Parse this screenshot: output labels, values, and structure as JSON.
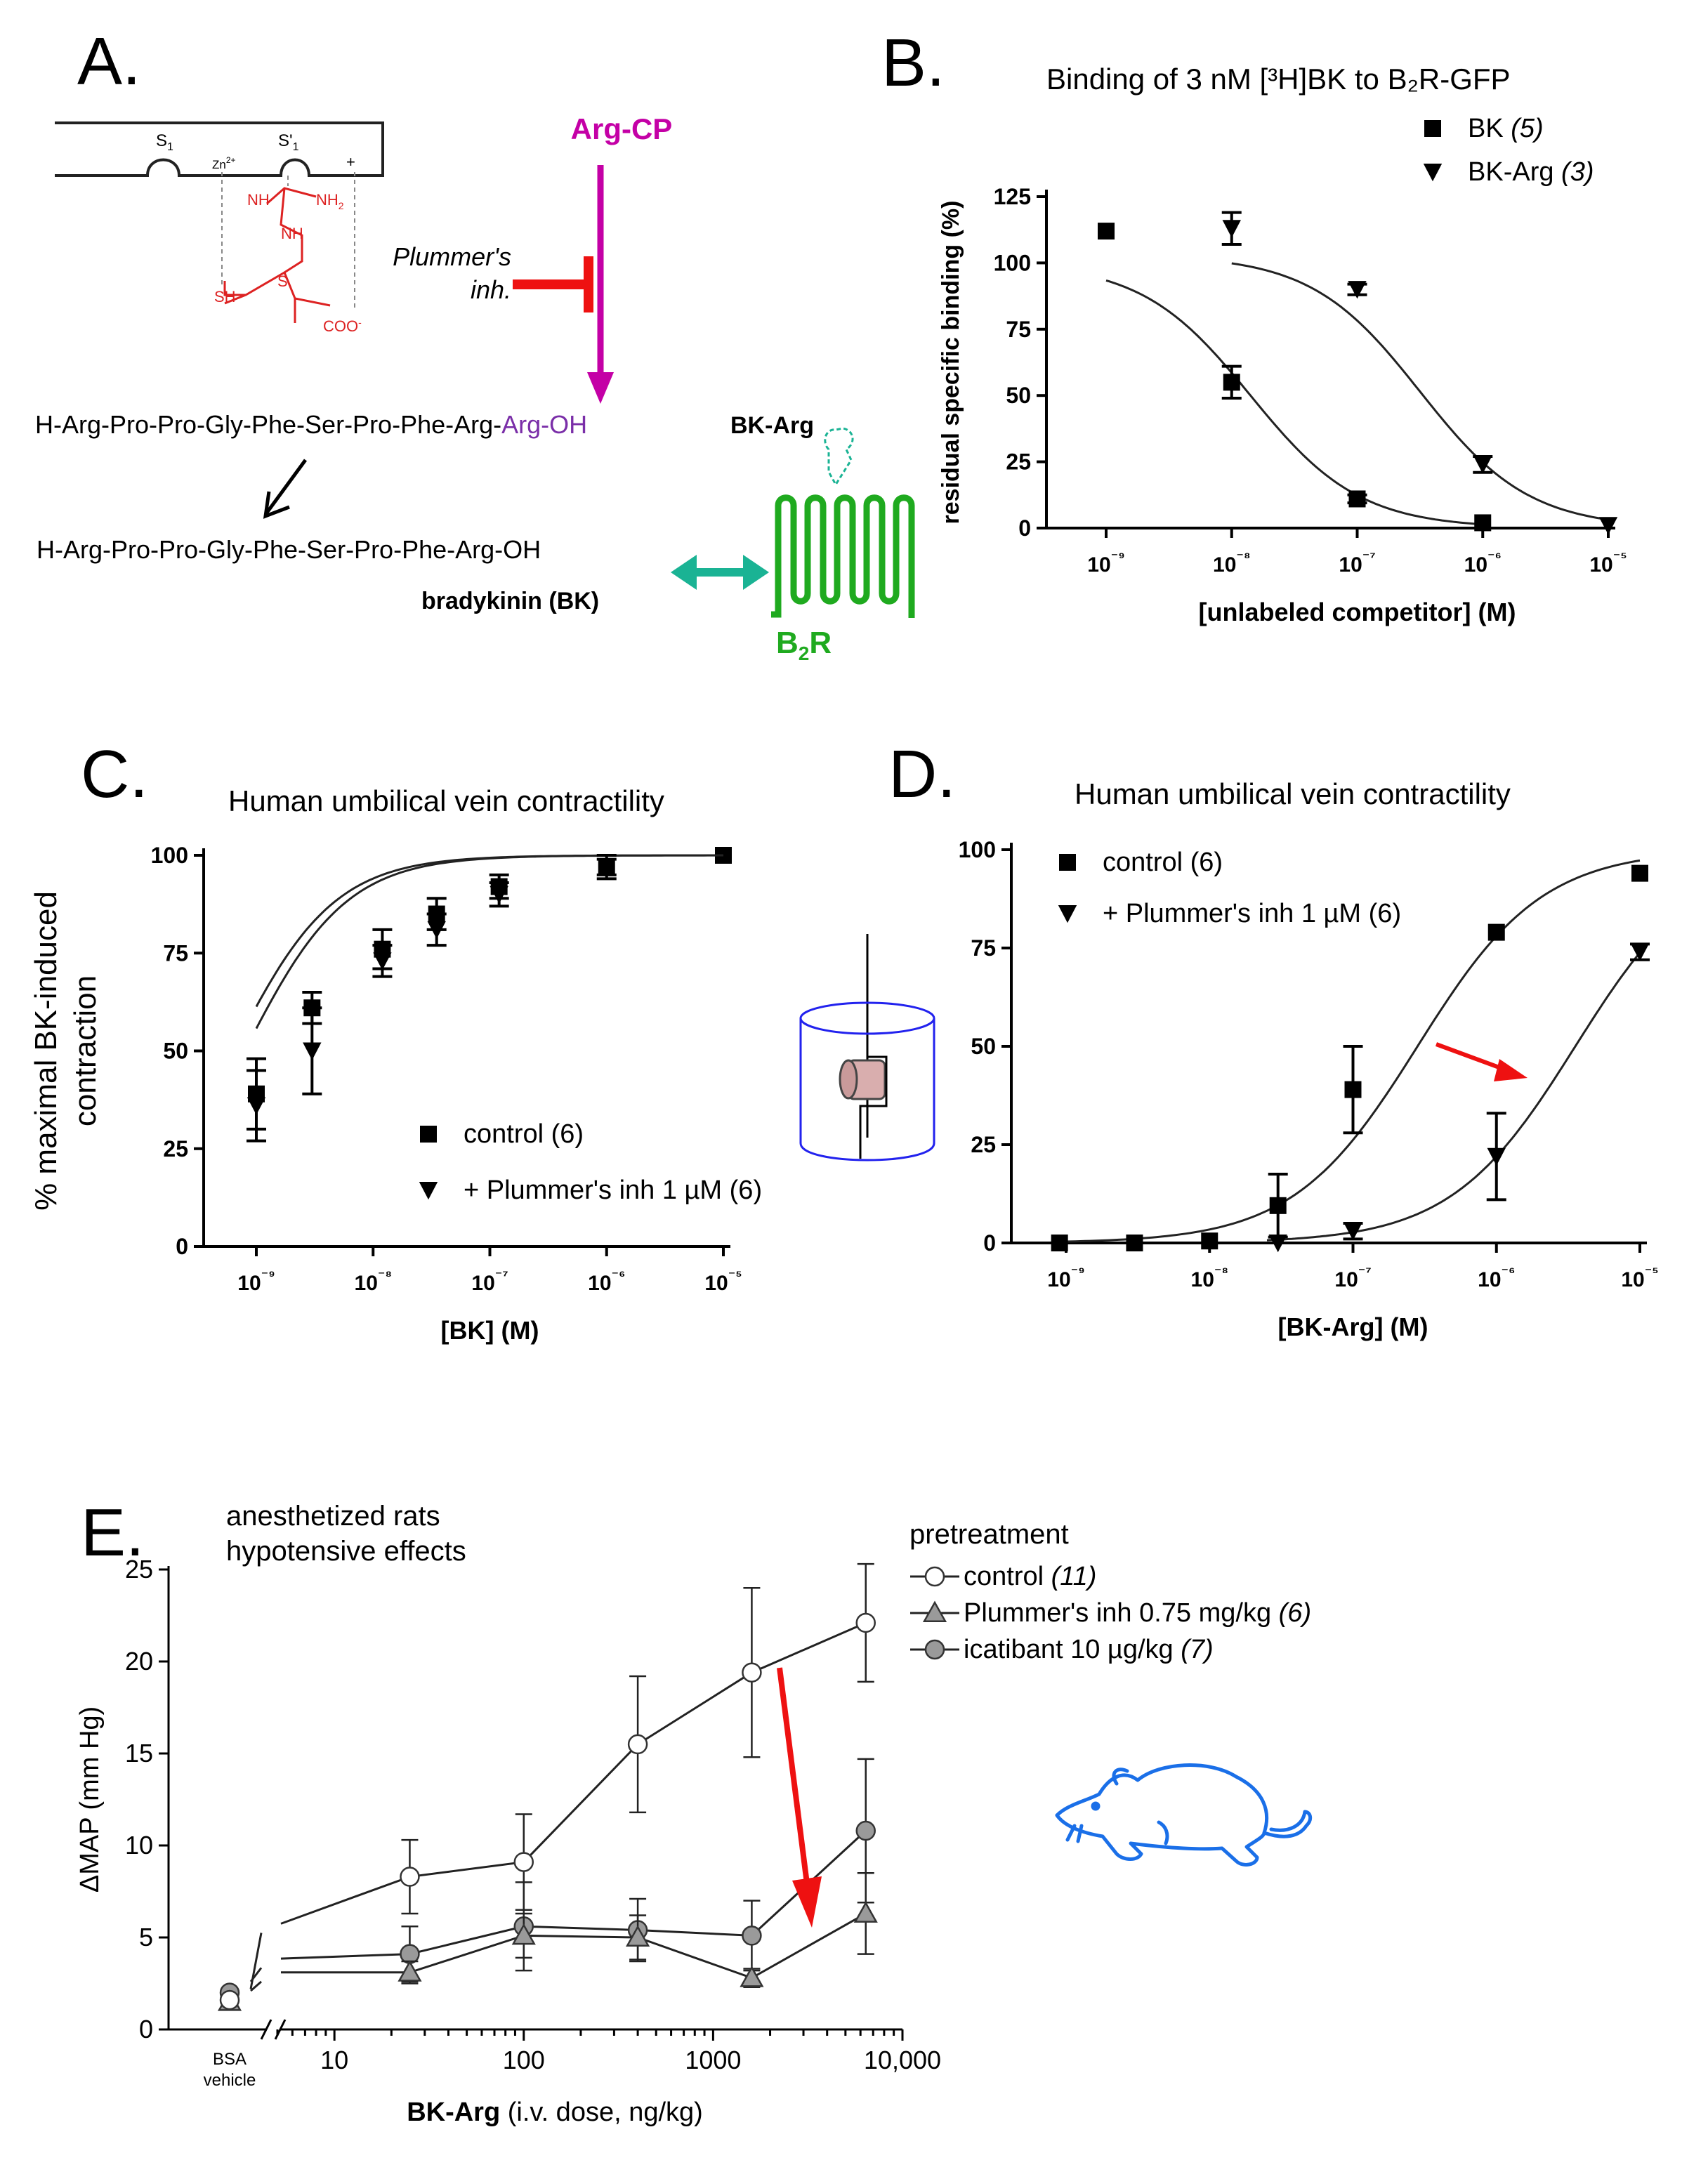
{
  "panel_a": {
    "letter": "A.",
    "s1": "S",
    "s1_sub": "1",
    "s1p": "S'",
    "s1p_sub": "1",
    "zn": "Zn",
    "zn_sup": "2+",
    "plus": "+",
    "nh_left": "NH",
    "nh2": "NH",
    "nh2_sub": "2",
    "nh_mid": "NH",
    "sh": "SH",
    "s": "S",
    "coo": "COO",
    "coo_sup": "-",
    "arg_cp": "Arg-CP",
    "plummer_1": "Plummer's",
    "plummer_2": "inh.",
    "bkarg_seq": "H-Arg-Pro-Pro-Gly-Phe-Ser-Pro-Phe-Arg-",
    "bkarg_seq_tail": "Arg-OH",
    "bkarg_label": "BK-Arg",
    "bk_seq": "H-Arg-Pro-Pro-Gly-Phe-Ser-Pro-Phe-Arg-OH",
    "bk_label": "bradykinin (BK)",
    "b2r": "B",
    "b2r_sub": "2",
    "b2r_tail": "R"
  },
  "chart_data": [
    {
      "panel": "B.",
      "type": "scatter",
      "title": "Binding of 3 nM [³H]BK to B₂R-GFP",
      "xlabel": "[unlabeled competitor]  (M)",
      "ylabel": "residual specific binding (%)",
      "x_scale": "log",
      "xlim": [
        1e-09,
        1e-05
      ],
      "ylim": [
        0,
        125
      ],
      "x_ticks": [
        "10⁻⁹",
        "10⁻⁸",
        "10⁻⁷",
        "10⁻⁶",
        "10⁻⁵"
      ],
      "y_ticks": [
        "0",
        "25",
        "50",
        "75",
        "100",
        "125"
      ],
      "legend_position": "top-right",
      "series": [
        {
          "name": "BK",
          "n": "(5)",
          "marker": "square",
          "x": [
            1e-09,
            1e-08,
            1e-07,
            1e-06
          ],
          "y": [
            112,
            55,
            11,
            2
          ],
          "err": [
            0,
            6,
            1.5,
            0
          ],
          "fit": {
            "top": 100,
            "bottom": 0,
            "log_ic50": -7.85
          }
        },
        {
          "name": "BK-Arg",
          "n": "(3)",
          "marker": "triangle-down",
          "x": [
            1e-08,
            1e-07,
            1e-06,
            1e-05
          ],
          "y": [
            113,
            90,
            24,
            1
          ],
          "err": [
            6,
            2,
            3,
            0
          ],
          "fit": {
            "top": 103,
            "bottom": 0,
            "log_ic50": -6.5
          }
        }
      ]
    },
    {
      "panel": "C.",
      "type": "scatter",
      "title": "Human umbilical vein contractility",
      "xlabel": "[BK]  (M)",
      "ylabel": "% maximal BK-induced contraction",
      "x_scale": "log",
      "xlim": [
        1e-09,
        1e-05
      ],
      "ylim": [
        0,
        100
      ],
      "x_ticks": [
        "10⁻⁹",
        "10⁻⁸",
        "10⁻⁷",
        "10⁻⁶",
        "10⁻⁵"
      ],
      "y_ticks": [
        "0",
        "25",
        "50",
        "75",
        "100"
      ],
      "legend_position": "bottom-right",
      "series": [
        {
          "name": "control",
          "n": "(6)",
          "marker": "square",
          "x": [
            1e-09,
            3e-09,
            1.2e-08,
            3.5e-08,
            1.2e-07,
            1e-06,
            1e-05
          ],
          "y": [
            39,
            61,
            76,
            85,
            92,
            97,
            100
          ],
          "err": [
            9,
            4,
            5,
            4,
            3,
            2,
            0
          ],
          "fit": {
            "top": 100,
            "bottom": 0,
            "log_ec50": -9.2
          }
        },
        {
          "name": "+ Plummer's inh 1 µM",
          "n": "(6)",
          "marker": "triangle-down",
          "x": [
            1e-09,
            3e-09,
            1.2e-08,
            3.5e-08,
            1.2e-07,
            1e-06
          ],
          "y": [
            36,
            50,
            73,
            81,
            90,
            97
          ],
          "err": [
            9,
            11,
            4,
            4,
            3,
            3
          ],
          "fit": {
            "top": 100,
            "bottom": 0,
            "log_ec50": -9.1
          }
        }
      ]
    },
    {
      "panel": "D.",
      "type": "scatter",
      "title": "Human umbilical vein contractility",
      "xlabel": "[BK-Arg]  (M)",
      "ylabel": "",
      "x_scale": "log",
      "xlim": [
        1e-09,
        1e-05
      ],
      "ylim": [
        0,
        100
      ],
      "x_ticks": [
        "10⁻⁹",
        "10⁻⁸",
        "10⁻⁷",
        "10⁻⁶",
        "10⁻⁵"
      ],
      "y_ticks": [
        "0",
        "25",
        "50",
        "75",
        "100"
      ],
      "legend_position": "top-left",
      "series": [
        {
          "name": "control",
          "n": "(6)",
          "marker": "square",
          "x": [
            9e-10,
            3e-09,
            1e-08,
            3e-08,
            1e-07,
            1e-06,
            1e-05
          ],
          "y": [
            0,
            0,
            0.5,
            9.5,
            39,
            79,
            94
          ],
          "err": [
            0,
            0,
            0,
            8,
            11,
            0,
            0
          ],
          "fit": {
            "top": 100,
            "bottom": 0,
            "log_ec50": -6.55
          }
        },
        {
          "name": "+ Plummer's inh 1 µM",
          "n": "(6)",
          "marker": "triangle-down",
          "x": [
            3e-08,
            1e-07,
            1e-06,
            1e-05
          ],
          "y": [
            0,
            3,
            22,
            74
          ],
          "err": [
            0,
            2,
            11,
            2
          ],
          "fit": {
            "top": 100,
            "bottom": 0,
            "log_ec50": -5.45
          }
        }
      ]
    },
    {
      "panel": "E.",
      "type": "line",
      "annotation_1": "anesthetized rats",
      "annotation_2": "hypotensive effects",
      "legend_title": "pretreatment",
      "xlabel_bold": "BK-Arg",
      "xlabel_rest": " (i.v. dose, ng/kg)",
      "ylabel": "ΔMAP (mm Hg)",
      "x_scale": "log",
      "xlim": [
        5,
        10000
      ],
      "ylim": [
        0,
        25
      ],
      "x_ticks": [
        "10",
        "100",
        "1000",
        "10,000"
      ],
      "y_ticks": [
        "0",
        "5",
        "10",
        "15",
        "20",
        "25"
      ],
      "vehicle_label_1": "BSA",
      "vehicle_label_2": "vehicle",
      "legend_position": "top-right",
      "series": [
        {
          "name": "control",
          "n": "(11)",
          "marker": "circle-open",
          "vehicle": 1.6,
          "x": [
            25,
            100,
            400,
            1600,
            6400
          ],
          "y": [
            8.3,
            9.1,
            15.5,
            19.4,
            22.1
          ],
          "err": [
            2,
            2.6,
            3.7,
            4.6,
            3.2
          ]
        },
        {
          "name": "Plummer's inh 0.75 mg/kg",
          "n": "(6)",
          "marker": "triangle-gray",
          "vehicle": 1.5,
          "x": [
            25,
            100,
            400,
            1600,
            6400
          ],
          "y": [
            3.1,
            5.1,
            5.0,
            2.8,
            6.3
          ],
          "err": [
            0.6,
            1.2,
            1.2,
            0.5,
            2.2
          ]
        },
        {
          "name": "icatibant 10 µg/kg",
          "n": "(7)",
          "marker": "circle-gray",
          "vehicle": 2.0,
          "x": [
            25,
            100,
            400,
            1600,
            6400
          ],
          "y": [
            4.1,
            5.6,
            5.4,
            5.1,
            10.8
          ],
          "err": [
            1.5,
            2.4,
            1.7,
            1.9,
            3.9
          ]
        }
      ]
    }
  ],
  "colors": {
    "arg_cp": "#c400a6",
    "inhibitor": "#ee1111",
    "chem": "#dd2222",
    "receptor": "#1faa1f",
    "double_arrow": "#1ab394",
    "bk_arg_tail": "#7a2ea8",
    "shift_arrow": "#ee1111",
    "chamber": "#2222ee",
    "tissue": "#d9aeae",
    "rat": "#1a6fe8",
    "gray_marker": "#9a9a9a"
  }
}
